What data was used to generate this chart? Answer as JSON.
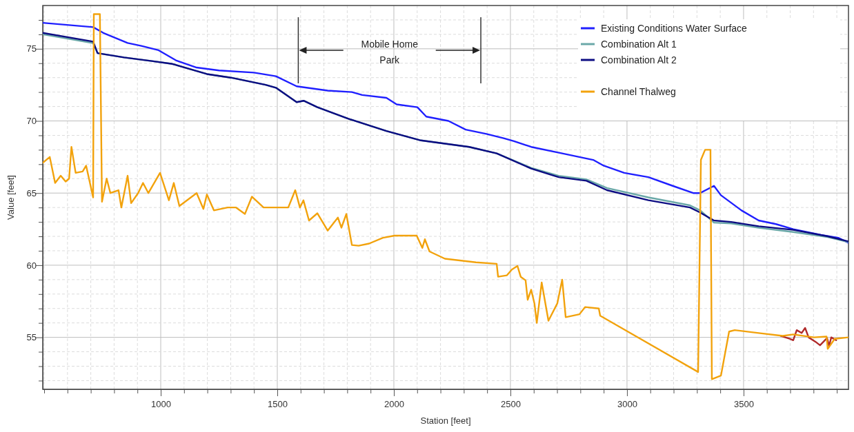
{
  "chart_data": {
    "type": "line",
    "xlabel": "Station [feet]",
    "ylabel": "Value [feet]",
    "xlim": [
      494,
      3950
    ],
    "ylim": [
      51.4,
      78
    ],
    "xticks": [
      {
        "value": 500,
        "label": null
      },
      {
        "value": 600,
        "label": null
      },
      {
        "value": 700,
        "label": null
      },
      {
        "value": 800,
        "label": null
      },
      {
        "value": 900,
        "label": null
      },
      1000,
      {
        "value": 1100,
        "label": null
      },
      {
        "value": 1200,
        "label": null
      },
      {
        "value": 1300,
        "label": null
      },
      {
        "value": 1400,
        "label": null
      },
      1500,
      {
        "value": 1600,
        "label": null
      },
      {
        "value": 1700,
        "label": null
      },
      {
        "value": 1800,
        "label": null
      },
      {
        "value": 1900,
        "label": null
      },
      2000,
      {
        "value": 2100,
        "label": null
      },
      {
        "value": 2200,
        "label": null
      },
      {
        "value": 2300,
        "label": null
      },
      {
        "value": 2400,
        "label": null
      },
      2500,
      {
        "value": 2600,
        "label": null
      },
      {
        "value": 2700,
        "label": null
      },
      {
        "value": 2800,
        "label": null
      },
      {
        "value": 2900,
        "label": null
      },
      3000,
      {
        "value": 3100,
        "label": null
      },
      {
        "value": 3200,
        "label": null
      },
      {
        "value": 3300,
        "label": null
      },
      {
        "value": 3400,
        "label": null
      },
      3500,
      {
        "value": 3600,
        "label": null
      },
      {
        "value": 3700,
        "label": null
      },
      {
        "value": 3800,
        "label": null
      },
      {
        "value": 3900,
        "label": null
      }
    ],
    "yticks": [
      {
        "value": 52,
        "label": null
      },
      {
        "value": 53,
        "label": null
      },
      {
        "value": 54,
        "label": null
      },
      55,
      {
        "value": 56,
        "label": null
      },
      {
        "value": 57,
        "label": null
      },
      {
        "value": 58,
        "label": null
      },
      {
        "value": 59,
        "label": null
      },
      60,
      {
        "value": 61,
        "label": null
      },
      {
        "value": 62,
        "label": null
      },
      {
        "value": 63,
        "label": null
      },
      {
        "value": 64,
        "label": null
      },
      65,
      {
        "value": 66,
        "label": null
      },
      {
        "value": 67,
        "label": null
      },
      {
        "value": 68,
        "label": null
      },
      {
        "value": 69,
        "label": null
      },
      70,
      {
        "value": 71,
        "label": null
      },
      {
        "value": 72,
        "label": null
      },
      {
        "value": 73,
        "label": null
      },
      {
        "value": 74,
        "label": null
      },
      75,
      {
        "value": 76,
        "label": null
      },
      {
        "value": 77,
        "label": null
      }
    ],
    "grid": true,
    "legend": "top right",
    "ref_lines": [
      {
        "axis": "x",
        "value": 1590,
        "color": "#333333"
      },
      {
        "axis": "x",
        "value": 2373,
        "color": "#333333"
      }
    ],
    "annotations": [
      "Mobile Home Park"
    ],
    "series": [
      {
        "name": "Existing Conditions Water Surface",
        "color": "#1f1fff",
        "x": [
          494,
          710,
          754,
          858,
          917,
          991,
          1065,
          1154,
          1250,
          1400,
          1494,
          1583,
          1716,
          1820,
          1864,
          1968,
          2012,
          2101,
          2139,
          2234,
          2308,
          2397,
          2471,
          2515,
          2589,
          2722,
          2855,
          2900,
          2988,
          3092,
          3196,
          3284,
          3314,
          3373,
          3403,
          3491,
          3565,
          3639,
          3713,
          3832,
          3906,
          3950
        ],
        "values": [
          76.8,
          76.5,
          76.1,
          75.4,
          75.2,
          74.9,
          74.2,
          73.7,
          73.5,
          73.35,
          73.1,
          72.4,
          72.1,
          72.0,
          71.8,
          71.6,
          71.15,
          70.95,
          70.3,
          70.0,
          69.4,
          69.1,
          68.8,
          68.6,
          68.2,
          67.75,
          67.3,
          66.9,
          66.4,
          66.1,
          65.5,
          65.0,
          65.0,
          65.5,
          64.85,
          63.8,
          63.1,
          62.85,
          62.5,
          62.1,
          61.9,
          61.55
        ]
      },
      {
        "name": "Combination Alt 1",
        "color": "#6aa8a8",
        "x": [
          494,
          710,
          729,
          843,
          962,
          1050,
          1124,
          1198,
          1301,
          1450,
          1494,
          1583,
          1613,
          1672,
          1805,
          1968,
          2116,
          2323,
          2441,
          2589,
          2707,
          2826,
          2914,
          3092,
          3270,
          3314,
          3373,
          3447,
          3565,
          3713,
          3861,
          3950
        ],
        "values": [
          76.0,
          75.4,
          74.7,
          74.4,
          74.15,
          73.95,
          73.6,
          73.25,
          73.0,
          72.5,
          72.3,
          71.3,
          71.4,
          70.95,
          70.15,
          69.3,
          68.65,
          68.2,
          67.75,
          66.75,
          66.2,
          65.95,
          65.35,
          64.7,
          64.15,
          63.8,
          62.95,
          62.9,
          62.6,
          62.3,
          61.95,
          61.6
        ]
      },
      {
        "name": "Combination Alt 2",
        "color": "#0c0c82",
        "x": [
          494,
          710,
          729,
          843,
          962,
          1050,
          1124,
          1198,
          1301,
          1450,
          1494,
          1583,
          1613,
          1672,
          1805,
          1968,
          2116,
          2323,
          2441,
          2589,
          2707,
          2826,
          2914,
          3092,
          3270,
          3314,
          3373,
          3447,
          3565,
          3713,
          3861,
          3950
        ],
        "values": [
          76.1,
          75.5,
          74.7,
          74.4,
          74.15,
          73.95,
          73.6,
          73.25,
          73.0,
          72.5,
          72.3,
          71.3,
          71.4,
          70.95,
          70.15,
          69.3,
          68.65,
          68.2,
          67.75,
          66.7,
          66.1,
          65.85,
          65.2,
          64.5,
          64.0,
          63.65,
          63.1,
          63.0,
          62.7,
          62.45,
          62.0,
          61.65
        ]
      },
      {
        "color": "#b02a2a",
        "x": [
          3660,
          3698,
          3713,
          3728,
          3749,
          3764,
          3779,
          3808,
          3828,
          3858,
          3867,
          3876,
          3897
        ],
        "values": [
          55.1,
          54.9,
          54.8,
          55.5,
          55.3,
          55.65,
          55.0,
          54.7,
          54.45,
          54.95,
          54.4,
          55.0,
          54.8
        ]
      },
      {
        "name": "Channel Thalweg",
        "color": "#f2a20c",
        "x": [
          494,
          524,
          547,
          571,
          592,
          607,
          617,
          635,
          665,
          680,
          710,
          713,
          739,
          748,
          768,
          784,
          819,
          831,
          858,
          873,
          903,
          924,
          947,
          997,
          1035,
          1056,
          1080,
          1154,
          1183,
          1198,
          1228,
          1287,
          1323,
          1361,
          1391,
          1441,
          1500,
          1547,
          1577,
          1597,
          1612,
          1636,
          1672,
          1716,
          1760,
          1775,
          1796,
          1820,
          1849,
          1894,
          1953,
          2003,
          2098,
          2122,
          2133,
          2153,
          2219,
          2352,
          2441,
          2447,
          2485,
          2506,
          2530,
          2544,
          2565,
          2574,
          2589,
          2603,
          2613,
          2634,
          2663,
          2701,
          2722,
          2737,
          2796,
          2820,
          2879,
          2885,
          3305,
          3317,
          3335,
          3358,
          3364,
          3403,
          3438,
          3462,
          3565,
          3668,
          3713,
          3802,
          3856,
          3861,
          3891,
          3950
        ],
        "values": [
          67.1,
          67.5,
          65.7,
          66.2,
          65.8,
          66.0,
          68.2,
          66.4,
          66.5,
          66.9,
          64.7,
          77.4,
          77.4,
          64.4,
          66.0,
          65.0,
          65.2,
          64.0,
          66.2,
          64.3,
          65.0,
          65.7,
          65.0,
          66.4,
          64.5,
          65.7,
          64.1,
          65.0,
          63.9,
          64.9,
          63.8,
          64.0,
          64.0,
          63.55,
          64.75,
          64.0,
          64.0,
          64.0,
          65.2,
          64.0,
          64.5,
          63.1,
          63.6,
          62.4,
          63.3,
          62.6,
          63.55,
          61.4,
          61.35,
          61.5,
          61.9,
          62.05,
          62.05,
          61.2,
          61.8,
          60.95,
          60.45,
          60.2,
          60.1,
          59.2,
          59.3,
          59.7,
          59.95,
          59.2,
          58.95,
          57.6,
          58.3,
          57.35,
          56.0,
          58.8,
          56.15,
          57.35,
          59.0,
          56.4,
          56.6,
          57.1,
          57.0,
          56.5,
          52.6,
          67.3,
          68.0,
          68.0,
          52.1,
          52.35,
          55.4,
          55.5,
          55.3,
          55.1,
          55.2,
          55.0,
          55.05,
          54.2,
          54.9,
          55.0
        ]
      }
    ]
  }
}
